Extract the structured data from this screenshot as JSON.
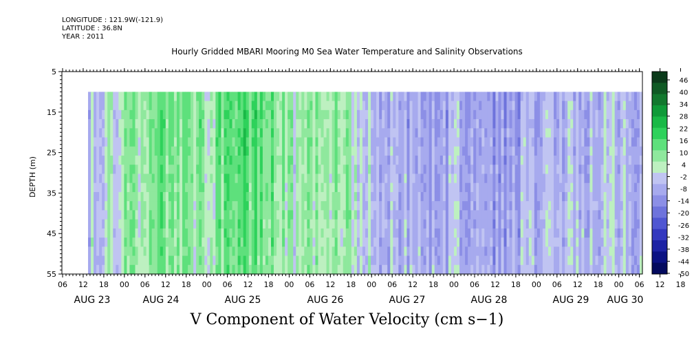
{
  "header": {
    "longitude": "LONGITUDE : 121.9W(-121.9)",
    "latitude": "LATITUDE : 36.8N",
    "year": "YEAR : 2011"
  },
  "chart_data": {
    "type": "heatmap",
    "title": "Hourly Gridded MBARI Mooring M0 Sea Water Temperature and Salinity Observations",
    "subtitle": "V Component of Water Velocity (cm s−1)",
    "ylabel": "DEPTH (m)",
    "xlabel": "",
    "y_ticks": [
      "5",
      "15",
      "25",
      "35",
      "45",
      "55"
    ],
    "ylim": [
      55,
      5
    ],
    "data_depth_range": [
      10,
      55
    ],
    "x_hour_ticks": [
      "06",
      "12",
      "18",
      "00",
      "06",
      "12",
      "18",
      "00",
      "06",
      "12",
      "18",
      "00",
      "06",
      "12",
      "18",
      "00",
      "06",
      "12",
      "18",
      "00",
      "06",
      "12",
      "18",
      "00",
      "06",
      "12",
      "18",
      "00",
      "06",
      "12",
      "18",
      "00",
      "06"
    ],
    "x_day_labels": [
      "AUG 23",
      "AUG 24",
      "AUG 25",
      "AUG 26",
      "AUG 27",
      "AUG 28",
      "AUG 29",
      "AUG 30"
    ],
    "colorbar": {
      "labels": [
        "46",
        "40",
        "34",
        "28",
        "22",
        "16",
        "10",
        "4",
        "-2",
        "-8",
        "-14",
        "-20",
        "-26",
        "-32",
        "-38",
        "-44",
        "-50"
      ],
      "range": [
        -50,
        49
      ],
      "colors": [
        "#0b3a1a",
        "#0f5a24",
        "#12782e",
        "#0f9a38",
        "#19b946",
        "#2ed25b",
        "#5ee07c",
        "#8fe89d",
        "#bdf0c0",
        "#c0c4f2",
        "#a7aaee",
        "#8c8fe6",
        "#6e73dc",
        "#4f56d2",
        "#3338bf",
        "#1c22a4",
        "#0b1283",
        "#040a5e"
      ]
    },
    "series_profile": [
      {
        "x_hours_from_start": 0,
        "mean_velocity": -3
      },
      {
        "x_hours_from_start": 12,
        "mean_velocity": 6
      },
      {
        "x_hours_from_start": 24,
        "mean_velocity": 12
      },
      {
        "x_hours_from_start": 36,
        "mean_velocity": 8
      },
      {
        "x_hours_from_start": 48,
        "mean_velocity": 16
      },
      {
        "x_hours_from_start": 60,
        "mean_velocity": 4
      },
      {
        "x_hours_from_start": 72,
        "mean_velocity": 9
      },
      {
        "x_hours_from_start": 84,
        "mean_velocity": -6
      },
      {
        "x_hours_from_start": 96,
        "mean_velocity": -10
      },
      {
        "x_hours_from_start": 108,
        "mean_velocity": -8
      },
      {
        "x_hours_from_start": 120,
        "mean_velocity": -12
      },
      {
        "x_hours_from_start": 132,
        "mean_velocity": -9
      },
      {
        "x_hours_from_start": 144,
        "mean_velocity": -6
      },
      {
        "x_hours_from_start": 156,
        "mean_velocity": -4
      },
      {
        "x_hours_from_start": 162,
        "mean_velocity": -7
      }
    ]
  }
}
